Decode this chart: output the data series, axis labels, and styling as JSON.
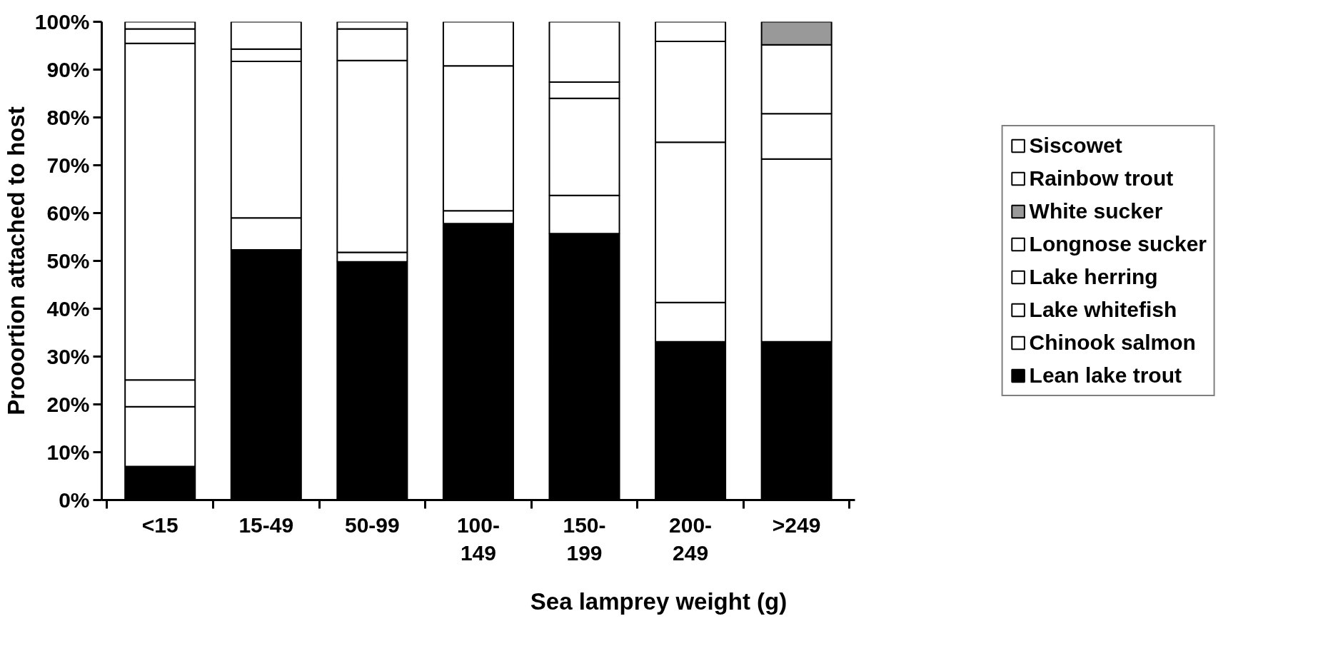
{
  "chart_data": {
    "type": "bar",
    "stacked": true,
    "xlabel": "Sea lamprey weight (g)",
    "ylabel": "Prooortion attached to host",
    "categories": [
      "<15",
      "15-49",
      "50-99",
      "100-\n149",
      "150-\n199",
      "200-\n249",
      ">249"
    ],
    "series": [
      {
        "name": "Lean lake trout",
        "color": "#000000",
        "values": [
          7.0,
          52.3,
          49.8,
          57.8,
          55.7,
          33.1,
          33.1
        ]
      },
      {
        "name": "Chinook salmon",
        "color": "#ffffff",
        "values": [
          12.5,
          6.7,
          2.0,
          2.7,
          8.0,
          8.2,
          0
        ]
      },
      {
        "name": "Lake whitefish",
        "color": "#ffffff",
        "values": [
          5.6,
          32.7,
          40.1,
          30.3,
          20.3,
          33.5,
          38.2
        ]
      },
      {
        "name": "Lake herring",
        "color": "#ffffff",
        "values": [
          70.4,
          2.6,
          0,
          0,
          3.4,
          0,
          9.5
        ]
      },
      {
        "name": "Longnose sucker",
        "color": "#ffffff",
        "values": [
          3.0,
          5.7,
          6.6,
          9.2,
          12.6,
          21.1,
          14.4
        ]
      },
      {
        "name": "White sucker",
        "color": "#999999",
        "values": [
          0,
          0,
          0,
          0,
          0,
          0,
          4.8
        ]
      },
      {
        "name": "Rainbow trout",
        "color": "#ffffff",
        "values": [
          1.5,
          0,
          0,
          0,
          0,
          4.1,
          0
        ]
      },
      {
        "name": "Siscowet",
        "color": "#ffffff",
        "values": [
          0,
          0,
          1.5,
          0,
          0,
          0,
          0
        ]
      }
    ],
    "ylim": [
      0,
      100
    ],
    "yticks": [
      {
        "value": 0,
        "label": "0%"
      },
      {
        "value": 10,
        "label": "10%"
      },
      {
        "value": 20,
        "label": "20%"
      },
      {
        "value": 30,
        "label": "30%"
      },
      {
        "value": 40,
        "label": "40%"
      },
      {
        "value": 50,
        "label": "50%"
      },
      {
        "value": 60,
        "label": "60%"
      },
      {
        "value": 70,
        "label": "70%"
      },
      {
        "value": 80,
        "label": "80%"
      },
      {
        "value": 90,
        "label": "90%"
      },
      {
        "value": 100,
        "label": "100%"
      }
    ],
    "grid": false,
    "legend": "right"
  }
}
